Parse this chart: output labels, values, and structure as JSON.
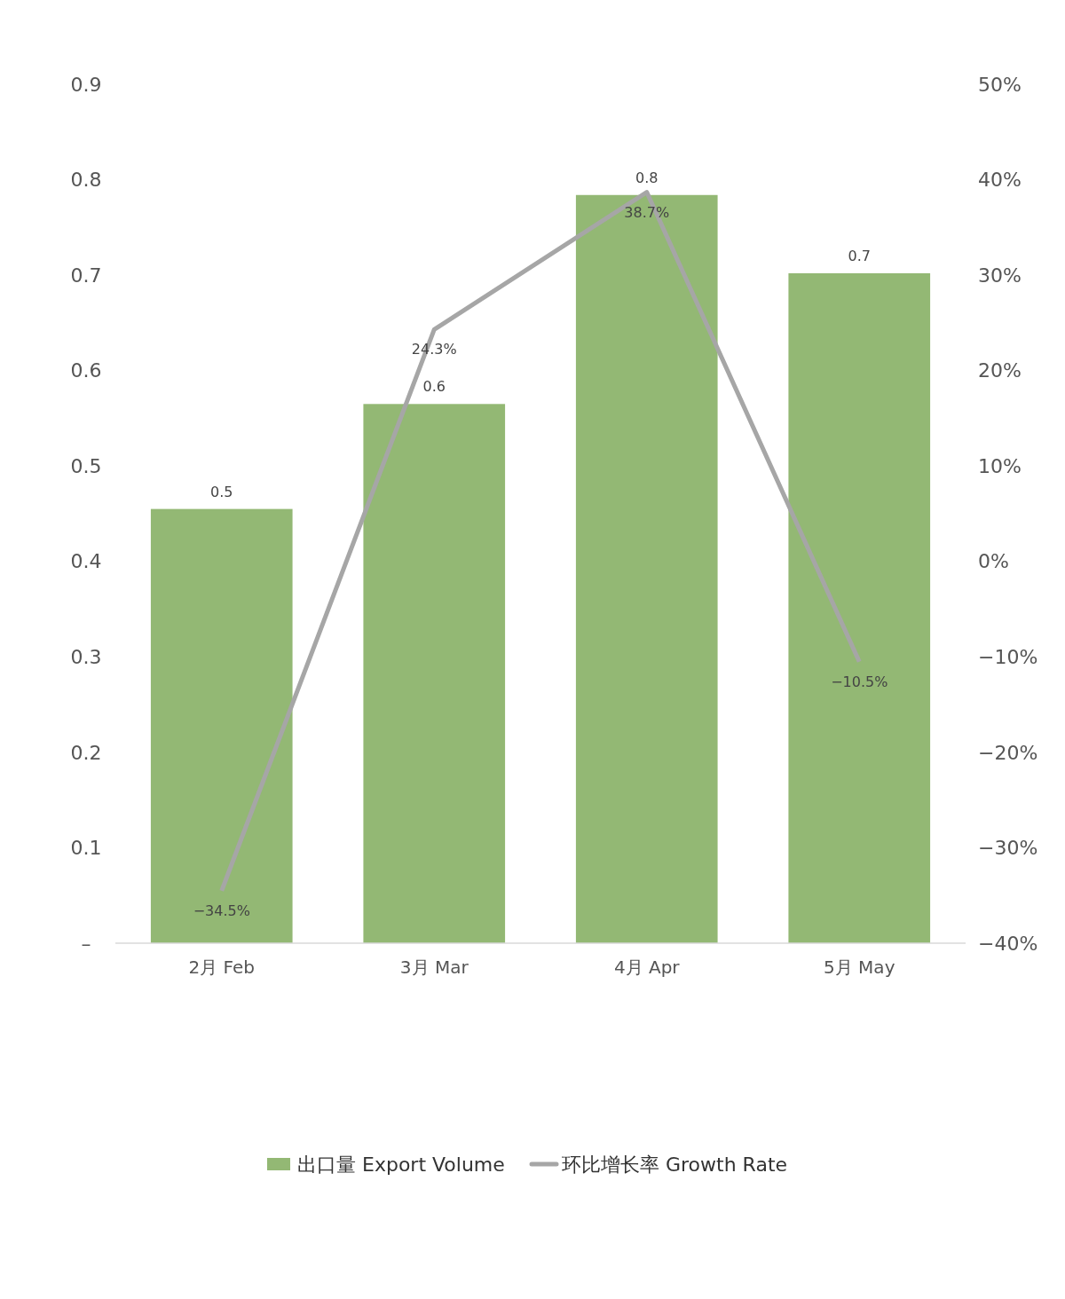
{
  "chart_data": {
    "type": "bar",
    "categories": [
      "2月 Feb",
      "3月 Mar",
      "4月 Apr",
      "5月 May"
    ],
    "series": [
      {
        "name": "出口量 Export Volume",
        "color": "#93b874",
        "values": [
          0.455,
          0.565,
          0.784,
          0.702
        ],
        "value_labels": [
          "0.5",
          "0.6",
          "0.8",
          "0.7"
        ]
      },
      {
        "name": "环比增长率 Growth Rate",
        "type": "line",
        "axis": "y2",
        "color": "#a6a6a6",
        "values": [
          -34.5,
          24.3,
          38.7,
          -10.5
        ],
        "value_labels": [
          "−34.5%",
          "24.3%",
          "38.7%",
          "−10.5%"
        ]
      }
    ],
    "ylim": [
      0,
      0.9
    ],
    "yticks": [
      {
        "value": 0,
        "label": "–"
      },
      0.1,
      0.2,
      0.3,
      0.4,
      0.5,
      0.6,
      0.7,
      0.8,
      0.9
    ],
    "y2lim": [
      -40,
      50
    ],
    "y2ticks": [
      {
        "value": -40,
        "label": "−40%"
      },
      {
        "value": -30,
        "label": "−30%"
      },
      {
        "value": -20,
        "label": "−20%"
      },
      {
        "value": -10,
        "label": "−10%"
      },
      {
        "value": 0,
        "label": "0%"
      },
      {
        "value": 10,
        "label": "10%"
      },
      {
        "value": 20,
        "label": "20%"
      },
      {
        "value": 30,
        "label": "30%"
      },
      {
        "value": 40,
        "label": "40%"
      },
      {
        "value": 50,
        "label": "50%"
      }
    ],
    "grid": false,
    "legend": "bottom",
    "marker": "none"
  }
}
